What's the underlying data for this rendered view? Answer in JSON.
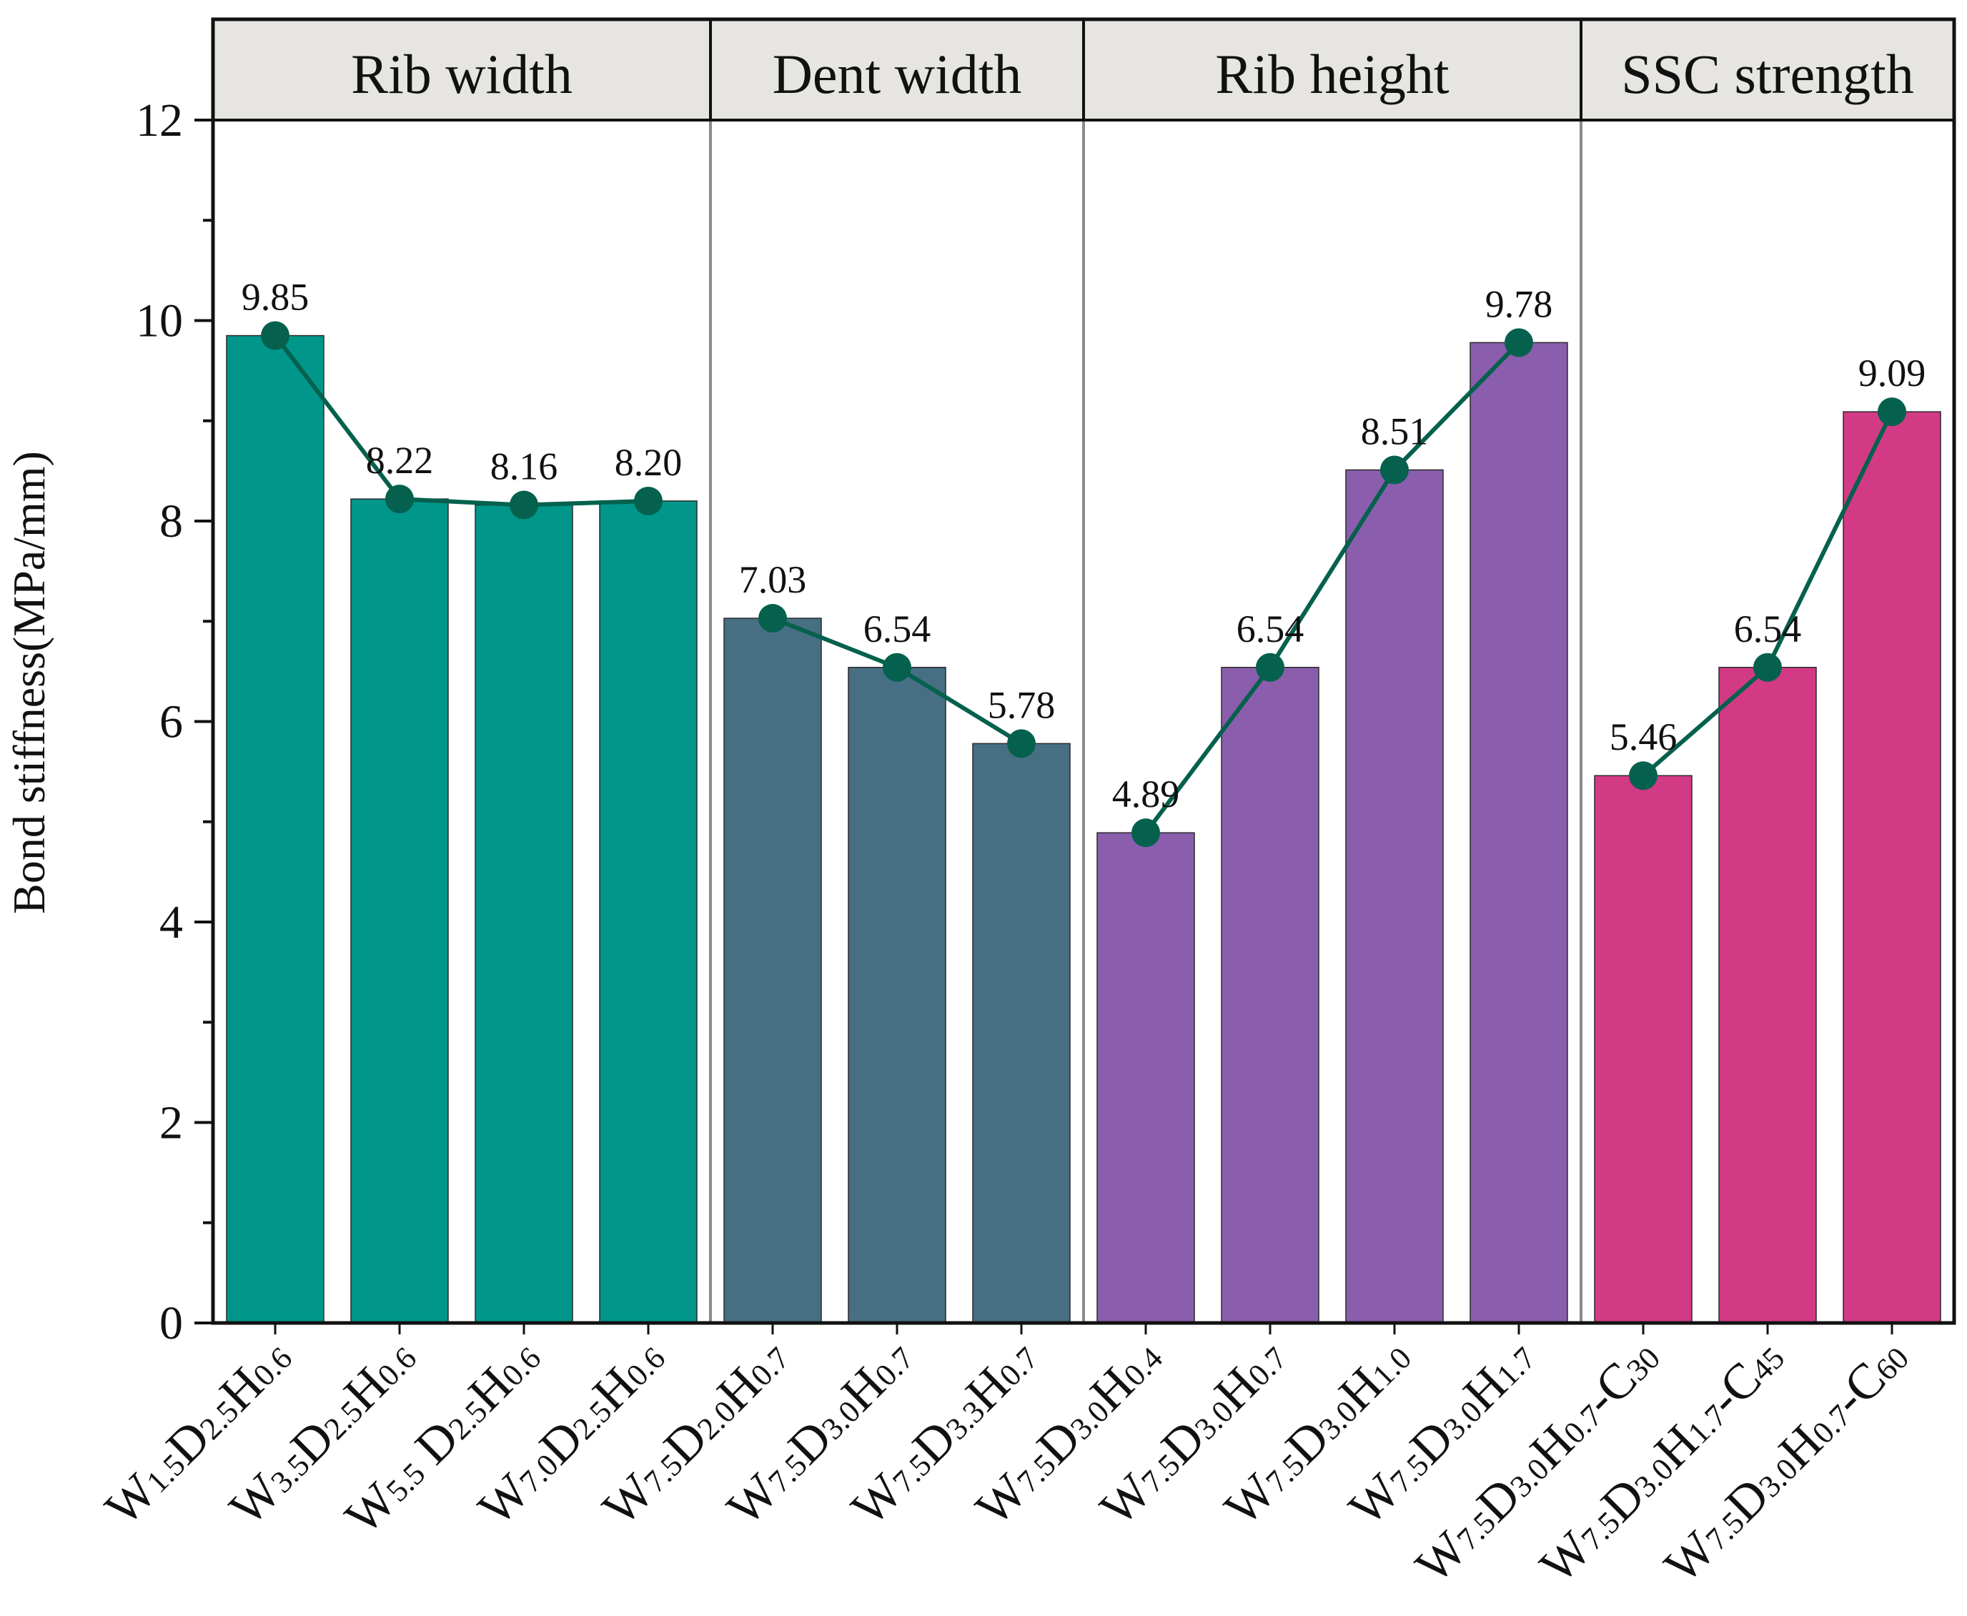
{
  "chart_data": {
    "type": "bar",
    "ylabel": "Bond stiffness(MPa/mm)",
    "xlabel": "",
    "ylim": [
      0,
      12
    ],
    "yticks": [
      0,
      2,
      4,
      6,
      8,
      10,
      12
    ],
    "grid": false,
    "groups": [
      {
        "label": "Rib width",
        "color": "#00968a",
        "start": 0,
        "end": 3
      },
      {
        "label": "Dent width",
        "color": "#476f84",
        "start": 4,
        "end": 6
      },
      {
        "label": "Rib height",
        "color": "#8a5ead",
        "start": 7,
        "end": 10
      },
      {
        "label": "SSC strength",
        "color": "#d23a86",
        "start": 11,
        "end": 13
      }
    ],
    "line_color": "#05614d",
    "categories": [
      [
        {
          "t": "W"
        },
        {
          "t": "1.5",
          "s": 1
        },
        {
          "t": "D"
        },
        {
          "t": "2.5",
          "s": 1
        },
        {
          "t": "H"
        },
        {
          "t": "0.6",
          "s": 1
        }
      ],
      [
        {
          "t": "W"
        },
        {
          "t": "3.5",
          "s": 1
        },
        {
          "t": "D"
        },
        {
          "t": "2.5",
          "s": 1
        },
        {
          "t": "H"
        },
        {
          "t": "0.6",
          "s": 1
        }
      ],
      [
        {
          "t": "W"
        },
        {
          "t": "5.5",
          "s": 1
        },
        {
          "t": " D"
        },
        {
          "t": "2.5",
          "s": 1
        },
        {
          "t": "H"
        },
        {
          "t": "0.6",
          "s": 1
        }
      ],
      [
        {
          "t": "W"
        },
        {
          "t": "7.0",
          "s": 1
        },
        {
          "t": "D"
        },
        {
          "t": "2.5",
          "s": 1
        },
        {
          "t": "H"
        },
        {
          "t": "0.6",
          "s": 1
        }
      ],
      [
        {
          "t": "W"
        },
        {
          "t": "7.5",
          "s": 1
        },
        {
          "t": "D"
        },
        {
          "t": "2.0",
          "s": 1
        },
        {
          "t": "H"
        },
        {
          "t": "0.7",
          "s": 1
        }
      ],
      [
        {
          "t": "W"
        },
        {
          "t": "7.5",
          "s": 1
        },
        {
          "t": "D"
        },
        {
          "t": "3.0",
          "s": 1
        },
        {
          "t": "H"
        },
        {
          "t": "0.7",
          "s": 1
        }
      ],
      [
        {
          "t": "W"
        },
        {
          "t": "7.5",
          "s": 1
        },
        {
          "t": "D"
        },
        {
          "t": "3.3",
          "s": 1
        },
        {
          "t": "H"
        },
        {
          "t": "0.7",
          "s": 1
        }
      ],
      [
        {
          "t": "W"
        },
        {
          "t": "7.5",
          "s": 1
        },
        {
          "t": "D"
        },
        {
          "t": "3.0",
          "s": 1
        },
        {
          "t": "H"
        },
        {
          "t": "0.4",
          "s": 1
        }
      ],
      [
        {
          "t": "W"
        },
        {
          "t": "7.5",
          "s": 1
        },
        {
          "t": "D"
        },
        {
          "t": "3.0",
          "s": 1
        },
        {
          "t": "H"
        },
        {
          "t": "0.7",
          "s": 1
        }
      ],
      [
        {
          "t": "W"
        },
        {
          "t": "7.5",
          "s": 1
        },
        {
          "t": "D"
        },
        {
          "t": "3.0",
          "s": 1
        },
        {
          "t": "H"
        },
        {
          "t": "1.0",
          "s": 1
        }
      ],
      [
        {
          "t": "W"
        },
        {
          "t": "7.5",
          "s": 1
        },
        {
          "t": "D"
        },
        {
          "t": "3.0",
          "s": 1
        },
        {
          "t": "H"
        },
        {
          "t": "1.7",
          "s": 1
        }
      ],
      [
        {
          "t": "W"
        },
        {
          "t": "7.5",
          "s": 1
        },
        {
          "t": "D"
        },
        {
          "t": "3.0",
          "s": 1
        },
        {
          "t": "H"
        },
        {
          "t": "0.7",
          "s": 1
        },
        {
          "t": "-C"
        },
        {
          "t": "30",
          "s": 1
        }
      ],
      [
        {
          "t": "W"
        },
        {
          "t": "7.5",
          "s": 1
        },
        {
          "t": "D"
        },
        {
          "t": "3.0",
          "s": 1
        },
        {
          "t": "H"
        },
        {
          "t": "1.7",
          "s": 1
        },
        {
          "t": "-C"
        },
        {
          "t": "45",
          "s": 1
        }
      ],
      [
        {
          "t": "W"
        },
        {
          "t": "7.5",
          "s": 1
        },
        {
          "t": "D"
        },
        {
          "t": "3.0",
          "s": 1
        },
        {
          "t": "H"
        },
        {
          "t": "0.7",
          "s": 1
        },
        {
          "t": "-C"
        },
        {
          "t": "60",
          "s": 1
        }
      ]
    ],
    "values": [
      9.85,
      8.22,
      8.16,
      8.2,
      7.03,
      6.54,
      5.78,
      4.89,
      6.54,
      8.51,
      9.78,
      5.46,
      6.54,
      9.09
    ],
    "value_labels": [
      "9.85",
      "8.22",
      "8.16",
      "8.20",
      "7.03",
      "6.54",
      "5.78",
      "4.89",
      "6.54",
      "8.51",
      "9.78",
      "5.46",
      "6.54",
      "9.09"
    ]
  }
}
